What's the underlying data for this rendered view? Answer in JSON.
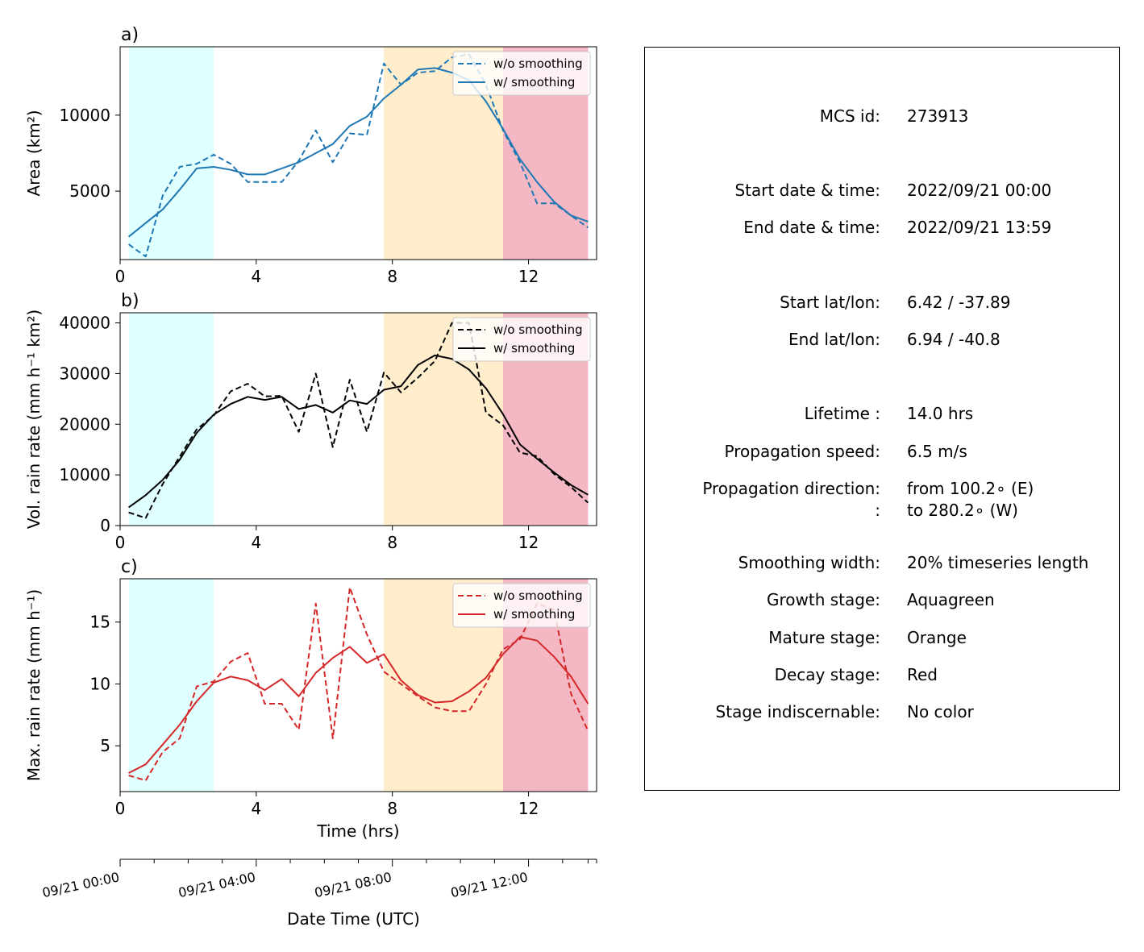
{
  "chart_data": [
    {
      "type": "line",
      "panel_label": "a)",
      "ylabel": "Area  (km²)",
      "xlabel": "",
      "xlim": [
        0,
        14
      ],
      "ylim": [
        500,
        14500
      ],
      "yticks": [
        5000,
        10000
      ],
      "xticks": [
        0,
        4,
        8,
        12
      ],
      "legend": "top-right",
      "color": "#1f77b4",
      "series": [
        {
          "name": "w/o smoothing",
          "style": "dashed",
          "x": [
            0.25,
            0.75,
            1.25,
            1.75,
            2.25,
            2.75,
            3.25,
            3.75,
            4.25,
            4.75,
            5.25,
            5.75,
            6.25,
            6.75,
            7.25,
            7.75,
            8.25,
            8.75,
            9.25,
            9.75,
            10.25,
            10.75,
            11.25,
            11.75,
            12.25,
            12.75,
            13.25,
            13.75
          ],
          "y": [
            1500,
            700,
            4700,
            6600,
            6800,
            7400,
            6800,
            5600,
            5600,
            5600,
            7000,
            9000,
            6900,
            8800,
            8700,
            13400,
            12000,
            12800,
            12900,
            13800,
            14000,
            12000,
            9000,
            6900,
            4200,
            4200,
            3400,
            2600
          ]
        },
        {
          "name": "w/ smoothing",
          "style": "solid",
          "x": [
            0.25,
            0.75,
            1.25,
            1.75,
            2.25,
            2.75,
            3.25,
            3.75,
            4.25,
            4.75,
            5.25,
            5.75,
            6.25,
            6.75,
            7.25,
            7.75,
            8.25,
            8.75,
            9.25,
            9.75,
            10.25,
            10.75,
            11.25,
            11.75,
            12.25,
            12.75,
            13.25,
            13.75
          ],
          "y": [
            2000,
            2900,
            3800,
            5100,
            6500,
            6600,
            6400,
            6100,
            6100,
            6500,
            6900,
            7500,
            8100,
            9300,
            9900,
            11100,
            12000,
            13000,
            13100,
            12800,
            12300,
            10900,
            9100,
            7100,
            5600,
            4300,
            3400,
            3000
          ]
        }
      ]
    },
    {
      "type": "line",
      "panel_label": "b)",
      "ylabel": "Vol. rain rate (mm h⁻¹ km²)",
      "xlabel": "",
      "xlim": [
        0,
        14
      ],
      "ylim": [
        0,
        42000
      ],
      "yticks": [
        0,
        10000,
        20000,
        30000,
        40000
      ],
      "xticks": [
        0,
        4,
        8,
        12
      ],
      "legend": "top-right",
      "color": "#000000",
      "series": [
        {
          "name": "w/o smoothing",
          "style": "dashed",
          "x": [
            0.25,
            0.75,
            1.25,
            1.75,
            2.25,
            2.75,
            3.25,
            3.75,
            4.25,
            4.75,
            5.25,
            5.75,
            6.25,
            6.75,
            7.25,
            7.75,
            8.25,
            8.75,
            9.25,
            9.75,
            10.25,
            10.75,
            11.25,
            11.75,
            12.25,
            12.75,
            13.25,
            13.75
          ],
          "y": [
            2600,
            1500,
            8200,
            13600,
            19000,
            21700,
            26500,
            28000,
            25500,
            25600,
            18500,
            30000,
            15500,
            28800,
            18500,
            30200,
            26300,
            29200,
            32500,
            40000,
            40000,
            22300,
            19800,
            14400,
            13700,
            10200,
            7600,
            4500
          ]
        },
        {
          "name": "w/ smoothing",
          "style": "solid",
          "x": [
            0.25,
            0.75,
            1.25,
            1.75,
            2.25,
            2.75,
            3.25,
            3.75,
            4.25,
            4.75,
            5.25,
            5.75,
            6.25,
            6.75,
            7.25,
            7.75,
            8.25,
            8.75,
            9.25,
            9.75,
            10.25,
            10.75,
            11.25,
            11.75,
            12.25,
            12.75,
            13.25,
            13.75
          ],
          "y": [
            3600,
            6000,
            9000,
            13000,
            18300,
            21900,
            24000,
            25400,
            24800,
            25400,
            23000,
            23800,
            22300,
            24700,
            24000,
            26800,
            27500,
            31700,
            33600,
            32900,
            30800,
            27100,
            22000,
            16000,
            13200,
            10500,
            8000,
            6100
          ]
        }
      ]
    },
    {
      "type": "line",
      "panel_label": "c)",
      "ylabel": "Max. rain rate  (mm h⁻¹)",
      "xlabel": "Time (hrs)",
      "xlim": [
        0,
        14
      ],
      "ylim": [
        1.3,
        18.5
      ],
      "yticks": [
        5,
        10,
        15
      ],
      "xticks": [
        0,
        4,
        8,
        12
      ],
      "legend": "top-right",
      "color": "#d62728",
      "series": [
        {
          "name": "w/o smoothing",
          "style": "dashed",
          "x": [
            0.25,
            0.75,
            1.25,
            1.75,
            2.25,
            2.75,
            3.25,
            3.75,
            4.25,
            4.75,
            5.25,
            5.75,
            6.25,
            6.75,
            7.25,
            7.75,
            8.25,
            8.75,
            9.25,
            9.75,
            10.25,
            10.75,
            11.25,
            11.75,
            12.25,
            12.75,
            13.25,
            13.75
          ],
          "y": [
            2.6,
            2.2,
            4.5,
            5.6,
            9.8,
            10.2,
            11.8,
            12.5,
            8.4,
            8.4,
            6.3,
            16.5,
            5.6,
            17.8,
            14.0,
            11.0,
            10.0,
            9.0,
            8.1,
            7.8,
            7.8,
            10.0,
            12.8,
            13.6,
            16.5,
            16.0,
            9.2,
            6.2
          ]
        },
        {
          "name": "w/ smoothing",
          "style": "solid",
          "x": [
            0.25,
            0.75,
            1.25,
            1.75,
            2.25,
            2.75,
            3.25,
            3.75,
            4.25,
            4.75,
            5.25,
            5.75,
            6.25,
            6.75,
            7.25,
            7.75,
            8.25,
            8.75,
            9.25,
            9.75,
            10.25,
            10.75,
            11.25,
            11.75,
            12.25,
            12.75,
            13.25,
            13.75
          ],
          "y": [
            2.8,
            3.5,
            5.1,
            6.7,
            8.6,
            10.1,
            10.6,
            10.3,
            9.5,
            10.4,
            9.0,
            10.9,
            12.1,
            13.0,
            11.7,
            12.4,
            10.3,
            9.1,
            8.5,
            8.6,
            9.4,
            10.5,
            12.4,
            13.8,
            13.5,
            12.2,
            10.6,
            8.4
          ]
        }
      ]
    }
  ],
  "stages": {
    "growth": {
      "start": 0.25,
      "end": 2.75,
      "color": "#e0ffff"
    },
    "mature": {
      "start": 7.75,
      "end": 11.25,
      "color": "#ffedcc"
    },
    "decay": {
      "start": 11.25,
      "end": 13.75,
      "color": "#f3b8c4"
    }
  },
  "date_axis": {
    "xlabel": "Date Time (UTC)",
    "major_ticks": [
      {
        "x": 0,
        "label": "09/21 00:00"
      },
      {
        "x": 4,
        "label": "09/21 04:00"
      },
      {
        "x": 8,
        "label": "09/21 08:00"
      },
      {
        "x": 12,
        "label": "09/21 12:00"
      }
    ]
  },
  "info": {
    "mcs_id_label": "MCS id:",
    "mcs_id": "273913",
    "start_dt_label": "Start date & time:",
    "start_dt": "2022/09/21 00:00",
    "end_dt_label": "End date & time:",
    "end_dt": "2022/09/21 13:59",
    "start_ll_label": "Start lat/lon:",
    "start_ll": "6.42 / -37.89",
    "end_ll_label": "End lat/lon:",
    "end_ll": "6.94 / -40.8",
    "lifetime_label": "Lifetime :",
    "lifetime": "14.0 hrs",
    "speed_label": "Propagation speed:",
    "speed": "6.5 m/s",
    "direction_label": "Propagation direction:",
    "direction_from": "from 100.2∘ (E)",
    "direction_colon": ":",
    "direction_to": "to   280.2∘ (W)",
    "smoothing_label": "Smoothing width:",
    "smoothing": "20% timeseries length",
    "growth_label": "Growth stage:",
    "growth": "Aquagreen",
    "mature_label": "Mature stage:",
    "mature": "Orange",
    "decay_label": "Decay stage:",
    "decay": "Red",
    "indisc_label": "Stage indiscernable:",
    "indisc": "No color"
  }
}
